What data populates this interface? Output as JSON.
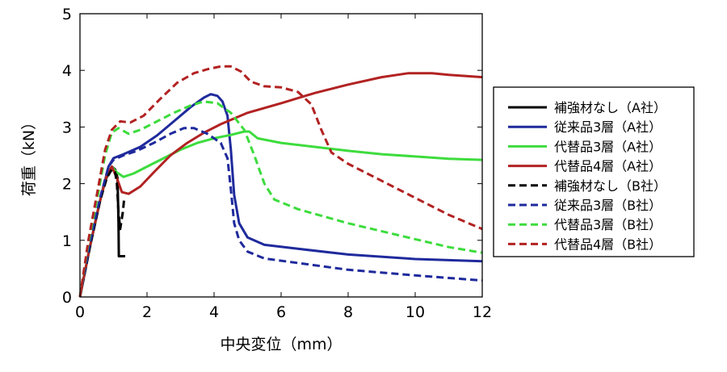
{
  "chart_data": {
    "type": "line",
    "title": "",
    "xlabel": "中央変位（mm）",
    "ylabel": "荷重（kN）",
    "xlim": [
      0,
      12
    ],
    "ylim": [
      0,
      5
    ],
    "xticks": [
      0,
      2,
      4,
      6,
      8,
      10,
      12
    ],
    "yticks": [
      0,
      1,
      2,
      3,
      4,
      5
    ],
    "grid": false,
    "legend_position": "right",
    "series": [
      {
        "name": "補強材なし（A社）",
        "color": "#000000",
        "dash": "solid",
        "points": [
          [
            0,
            0
          ],
          [
            0.25,
            0.75
          ],
          [
            0.5,
            1.45
          ],
          [
            0.7,
            1.95
          ],
          [
            0.85,
            2.2
          ],
          [
            0.95,
            2.3
          ],
          [
            1.05,
            2.25
          ],
          [
            1.12,
            2.1
          ],
          [
            1.15,
            1.3
          ],
          [
            1.16,
            0.72
          ],
          [
            1.25,
            0.72
          ],
          [
            1.35,
            0.72
          ]
        ]
      },
      {
        "name": "従来品3層（A社）",
        "color": "#1f2a9c",
        "dash": "solid",
        "points": [
          [
            0,
            0
          ],
          [
            0.3,
            0.9
          ],
          [
            0.6,
            1.7
          ],
          [
            0.85,
            2.3
          ],
          [
            1.0,
            2.45
          ],
          [
            1.3,
            2.52
          ],
          [
            1.8,
            2.65
          ],
          [
            2.3,
            2.85
          ],
          [
            2.8,
            3.1
          ],
          [
            3.3,
            3.35
          ],
          [
            3.7,
            3.52
          ],
          [
            3.9,
            3.58
          ],
          [
            4.1,
            3.55
          ],
          [
            4.25,
            3.45
          ],
          [
            4.4,
            3.2
          ],
          [
            4.5,
            2.6
          ],
          [
            4.6,
            1.8
          ],
          [
            4.75,
            1.3
          ],
          [
            5.0,
            1.05
          ],
          [
            5.5,
            0.92
          ],
          [
            6.5,
            0.85
          ],
          [
            8.0,
            0.75
          ],
          [
            10.0,
            0.67
          ],
          [
            12.0,
            0.63
          ]
        ]
      },
      {
        "name": "代替品3層（A社）",
        "color": "#3ddc3d",
        "dash": "solid",
        "points": [
          [
            0,
            0
          ],
          [
            0.3,
            0.9
          ],
          [
            0.6,
            1.7
          ],
          [
            0.8,
            2.15
          ],
          [
            0.95,
            2.3
          ],
          [
            1.1,
            2.2
          ],
          [
            1.3,
            2.12
          ],
          [
            1.6,
            2.18
          ],
          [
            2.0,
            2.3
          ],
          [
            2.5,
            2.45
          ],
          [
            3.0,
            2.6
          ],
          [
            3.5,
            2.72
          ],
          [
            4.0,
            2.8
          ],
          [
            4.5,
            2.86
          ],
          [
            4.9,
            2.92
          ],
          [
            5.05,
            2.92
          ],
          [
            5.3,
            2.8
          ],
          [
            6.0,
            2.72
          ],
          [
            7.0,
            2.65
          ],
          [
            8.0,
            2.58
          ],
          [
            9.0,
            2.52
          ],
          [
            10.0,
            2.48
          ],
          [
            11.0,
            2.44
          ],
          [
            12.0,
            2.42
          ]
        ]
      },
      {
        "name": "代替品4層（A社）",
        "color": "#b22222",
        "dash": "solid",
        "points": [
          [
            0,
            0
          ],
          [
            0.3,
            0.9
          ],
          [
            0.6,
            1.7
          ],
          [
            0.8,
            2.15
          ],
          [
            0.95,
            2.3
          ],
          [
            1.1,
            2.1
          ],
          [
            1.25,
            1.85
          ],
          [
            1.45,
            1.82
          ],
          [
            1.8,
            1.95
          ],
          [
            2.2,
            2.2
          ],
          [
            2.7,
            2.5
          ],
          [
            3.2,
            2.72
          ],
          [
            3.7,
            2.9
          ],
          [
            4.2,
            3.05
          ],
          [
            5.0,
            3.25
          ],
          [
            6.0,
            3.42
          ],
          [
            7.0,
            3.6
          ],
          [
            8.0,
            3.75
          ],
          [
            9.0,
            3.88
          ],
          [
            9.8,
            3.95
          ],
          [
            10.5,
            3.95
          ],
          [
            11.0,
            3.92
          ],
          [
            12.0,
            3.88
          ]
        ]
      },
      {
        "name": "補強材なし（B社）",
        "color": "#000000",
        "dash": "dashed",
        "points": [
          [
            0,
            0
          ],
          [
            0.3,
            0.9
          ],
          [
            0.6,
            1.7
          ],
          [
            0.8,
            2.1
          ],
          [
            0.95,
            2.25
          ],
          [
            1.05,
            2.2
          ],
          [
            1.1,
            2.0
          ],
          [
            1.15,
            1.5
          ],
          [
            1.2,
            1.2
          ],
          [
            1.28,
            1.5
          ],
          [
            1.32,
            1.75
          ]
        ]
      },
      {
        "name": "従来品3層（B社）",
        "color": "#1f2a9c",
        "dash": "dashed",
        "points": [
          [
            0,
            0
          ],
          [
            0.3,
            0.95
          ],
          [
            0.6,
            1.75
          ],
          [
            0.85,
            2.3
          ],
          [
            1.0,
            2.42
          ],
          [
            1.3,
            2.5
          ],
          [
            1.7,
            2.58
          ],
          [
            2.2,
            2.72
          ],
          [
            2.7,
            2.88
          ],
          [
            3.1,
            2.98
          ],
          [
            3.4,
            2.98
          ],
          [
            3.8,
            2.88
          ],
          [
            4.2,
            2.72
          ],
          [
            4.4,
            2.45
          ],
          [
            4.5,
            1.9
          ],
          [
            4.6,
            1.3
          ],
          [
            4.75,
            1.0
          ],
          [
            5.0,
            0.8
          ],
          [
            5.5,
            0.68
          ],
          [
            6.5,
            0.6
          ],
          [
            8.0,
            0.48
          ],
          [
            10.0,
            0.38
          ],
          [
            12.0,
            0.29
          ]
        ]
      },
      {
        "name": "代替品3層（B社）",
        "color": "#3ddc3d",
        "dash": "dashed",
        "points": [
          [
            0,
            0
          ],
          [
            0.25,
            0.95
          ],
          [
            0.55,
            1.85
          ],
          [
            0.75,
            2.5
          ],
          [
            0.95,
            2.9
          ],
          [
            1.15,
            2.98
          ],
          [
            1.45,
            2.88
          ],
          [
            1.8,
            2.95
          ],
          [
            2.3,
            3.1
          ],
          [
            2.8,
            3.25
          ],
          [
            3.3,
            3.38
          ],
          [
            3.7,
            3.45
          ],
          [
            4.1,
            3.42
          ],
          [
            4.5,
            3.25
          ],
          [
            4.9,
            2.95
          ],
          [
            5.2,
            2.5
          ],
          [
            5.5,
            2.0
          ],
          [
            5.8,
            1.72
          ],
          [
            6.5,
            1.55
          ],
          [
            8.0,
            1.3
          ],
          [
            10.0,
            1.02
          ],
          [
            11.0,
            0.88
          ],
          [
            12.0,
            0.78
          ]
        ]
      },
      {
        "name": "代替品4層（B社）",
        "color": "#b22222",
        "dash": "dashed",
        "points": [
          [
            0,
            0
          ],
          [
            0.25,
            1.0
          ],
          [
            0.55,
            1.95
          ],
          [
            0.75,
            2.6
          ],
          [
            0.95,
            2.95
          ],
          [
            1.2,
            3.1
          ],
          [
            1.5,
            3.08
          ],
          [
            1.9,
            3.2
          ],
          [
            2.4,
            3.5
          ],
          [
            2.9,
            3.78
          ],
          [
            3.4,
            3.95
          ],
          [
            3.8,
            4.02
          ],
          [
            4.2,
            4.07
          ],
          [
            4.5,
            4.07
          ],
          [
            4.8,
            3.98
          ],
          [
            5.1,
            3.8
          ],
          [
            5.5,
            3.72
          ],
          [
            6.0,
            3.7
          ],
          [
            6.5,
            3.62
          ],
          [
            6.9,
            3.4
          ],
          [
            7.2,
            2.95
          ],
          [
            7.5,
            2.55
          ],
          [
            8.0,
            2.35
          ],
          [
            9.0,
            2.05
          ],
          [
            10.0,
            1.75
          ],
          [
            11.0,
            1.45
          ],
          [
            12.0,
            1.2
          ]
        ]
      }
    ]
  }
}
